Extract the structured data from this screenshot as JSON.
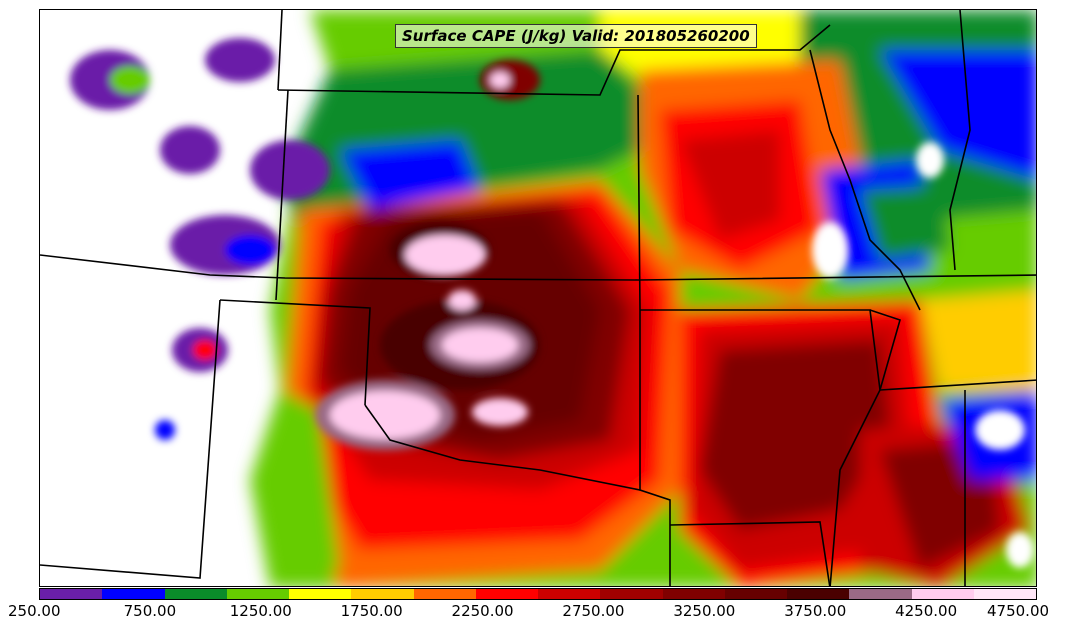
{
  "title": "Surface CAPE (J/kg) Valid: 201805260200",
  "colorbar": {
    "colors": [
      "#6a1fa8",
      "#0000ff",
      "#0a8c2a",
      "#66cc00",
      "#ffff00",
      "#ffcc00",
      "#ff6600",
      "#ff0000",
      "#cc0000",
      "#a00000",
      "#800000",
      "#660000",
      "#4a0000",
      "#9a6a86",
      "#ffccee",
      "#ffe6f7"
    ],
    "labels": [
      "250.00",
      "750.00",
      "1250.00",
      "1750.00",
      "2250.00",
      "2750.00",
      "3250.00",
      "3750.00",
      "4250.00",
      "4750.00"
    ]
  }
}
